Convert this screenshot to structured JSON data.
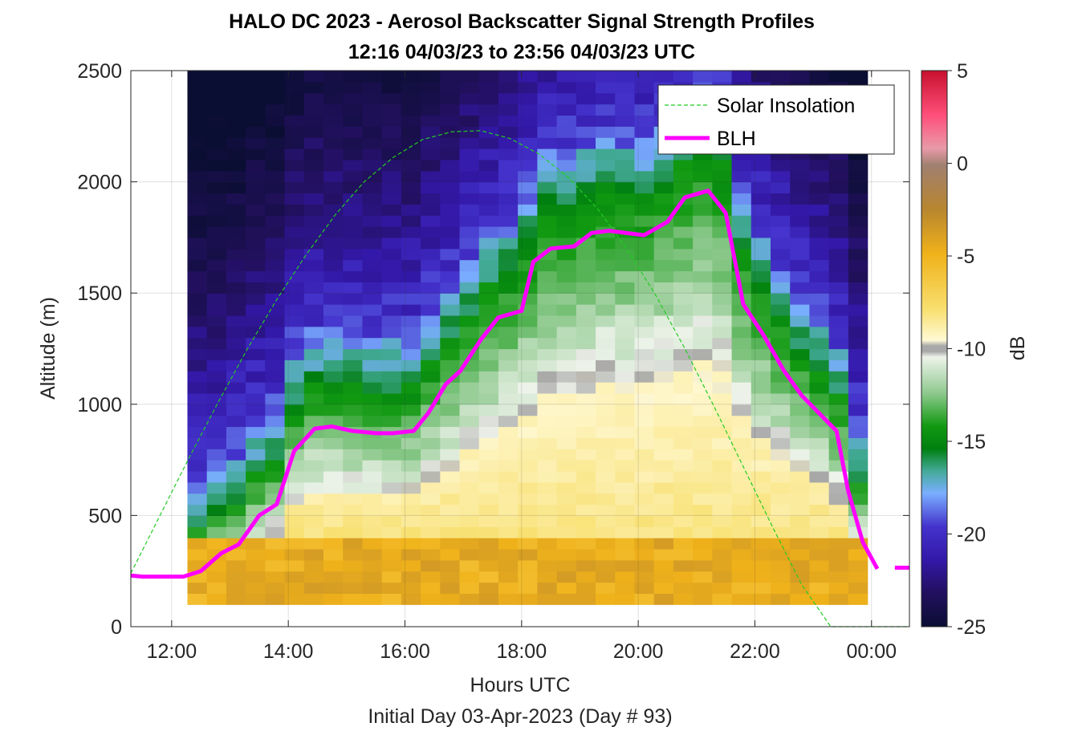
{
  "chart_data": {
    "type": "heatmap",
    "title": "HALO DC 2023 - Aerosol Backscatter Signal Strength Profiles",
    "subtitle": "12:16 04/03/23 to 23:56 04/03/23  UTC",
    "xlabel": "Hours UTC",
    "xlabel2": "Initial Day 03-Apr-2023 (Day # 93)",
    "ylabel": "Altitude (m)",
    "colorbar_label": "dB",
    "xlim": [
      11.3,
      24.65
    ],
    "ylim": [
      0,
      2500
    ],
    "clim": [
      -25,
      5
    ],
    "x_ticks": [
      12,
      14,
      16,
      18,
      20,
      22,
      24
    ],
    "x_tick_labels": [
      "12:00",
      "14:00",
      "16:00",
      "18:00",
      "20:00",
      "22:00",
      "00:00"
    ],
    "y_ticks": [
      0,
      500,
      1000,
      1500,
      2000,
      2500
    ],
    "y_tick_labels": [
      "0",
      "500",
      "1000",
      "1500",
      "2000",
      "2500"
    ],
    "colorbar_ticks": [
      5,
      0,
      -5,
      -10,
      -15,
      -20,
      -25
    ],
    "colorbar_tick_labels": [
      "5",
      "0",
      "-5",
      "-10",
      "-15",
      "-20",
      "-25"
    ],
    "grid": true,
    "legend_position": "top-right",
    "heatmap": {
      "time_start": 12.27,
      "time_end": 23.93,
      "time_step": 0.3333,
      "alt_start": 100,
      "alt_end": 2500,
      "alt_step": 50
    },
    "series": [
      {
        "name": "Solar Insolation",
        "style": "dashed",
        "color": "#22cc22",
        "x": [
          11.3,
          11.8,
          12.3,
          12.8,
          13.3,
          13.8,
          14.3,
          14.8,
          15.3,
          15.8,
          16.3,
          16.8,
          17.3,
          17.8,
          18.3,
          18.8,
          19.3,
          19.8,
          20.3,
          20.8,
          21.3,
          21.8,
          22.3,
          22.8,
          23.3,
          23.7,
          24.0,
          24.65
        ],
        "y": [
          240,
          500,
          760,
          1010,
          1250,
          1470,
          1670,
          1850,
          2000,
          2110,
          2190,
          2225,
          2230,
          2195,
          2125,
          2020,
          1880,
          1700,
          1490,
          1250,
          990,
          720,
          450,
          190,
          0,
          0,
          0,
          0
        ]
      },
      {
        "name": "BLH",
        "style": "solid",
        "color": "#ff00ff",
        "x": [
          11.3,
          11.5,
          11.75,
          12.0,
          12.2,
          12.5,
          12.85,
          13.15,
          13.5,
          13.8,
          14.1,
          14.45,
          14.75,
          15.1,
          15.5,
          15.8,
          16.15,
          16.4,
          16.7,
          16.95,
          17.3,
          17.6,
          18.0,
          18.2,
          18.5,
          18.9,
          19.2,
          19.5,
          19.8,
          20.1,
          20.5,
          20.8,
          21.2,
          21.5,
          21.8,
          22.15,
          22.5,
          22.8,
          23.1,
          23.4,
          23.6,
          23.85,
          24.1
        ],
        "y": [
          230,
          225,
          225,
          225,
          225,
          250,
          330,
          370,
          500,
          550,
          790,
          890,
          900,
          880,
          870,
          870,
          880,
          960,
          1090,
          1150,
          1290,
          1390,
          1420,
          1640,
          1700,
          1710,
          1770,
          1780,
          1770,
          1760,
          1820,
          1930,
          1960,
          1860,
          1450,
          1310,
          1150,
          1040,
          960,
          880,
          610,
          380,
          260
        ]
      },
      {
        "name": "BLH-segment-2",
        "style": "solid",
        "color": "#ff00ff",
        "x": [
          24.4,
          24.65
        ],
        "y": [
          265,
          265
        ]
      }
    ],
    "legend_entries": [
      "Solar Insolation",
      "BLH"
    ]
  }
}
